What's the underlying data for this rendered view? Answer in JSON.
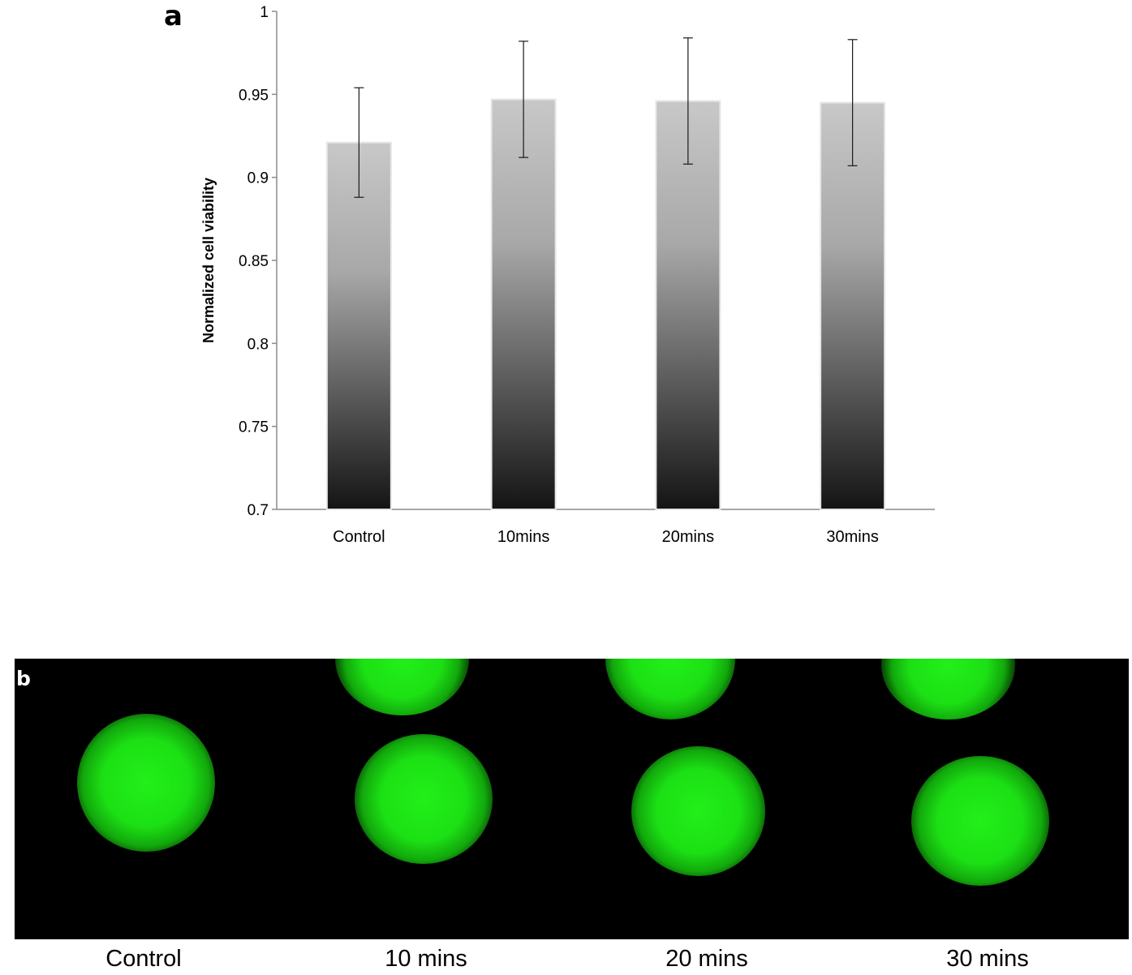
{
  "panel_a": {
    "label": "a"
  },
  "panel_b": {
    "label": "b",
    "captions": [
      "Control",
      "10 mins",
      "20 mins",
      "30 mins"
    ]
  },
  "chart_data": {
    "type": "bar",
    "title": "",
    "xlabel": "",
    "ylabel": "Normalized cell viability",
    "categories": [
      "Control",
      "10mins",
      "20mins",
      "30mins"
    ],
    "values": [
      0.921,
      0.947,
      0.946,
      0.945
    ],
    "error": [
      0.033,
      0.035,
      0.038,
      0.038
    ],
    "ylim": [
      0.7,
      1
    ],
    "yticks": [
      0.7,
      0.75,
      0.8,
      0.85,
      0.9,
      0.95,
      1
    ],
    "ytick_labels": [
      "0.7",
      "0.75",
      "0.8",
      "0.85",
      "0.9",
      "0.95",
      "1"
    ],
    "grid": false,
    "bar_gradient": [
      "#c8c8c8",
      "#141414"
    ]
  }
}
